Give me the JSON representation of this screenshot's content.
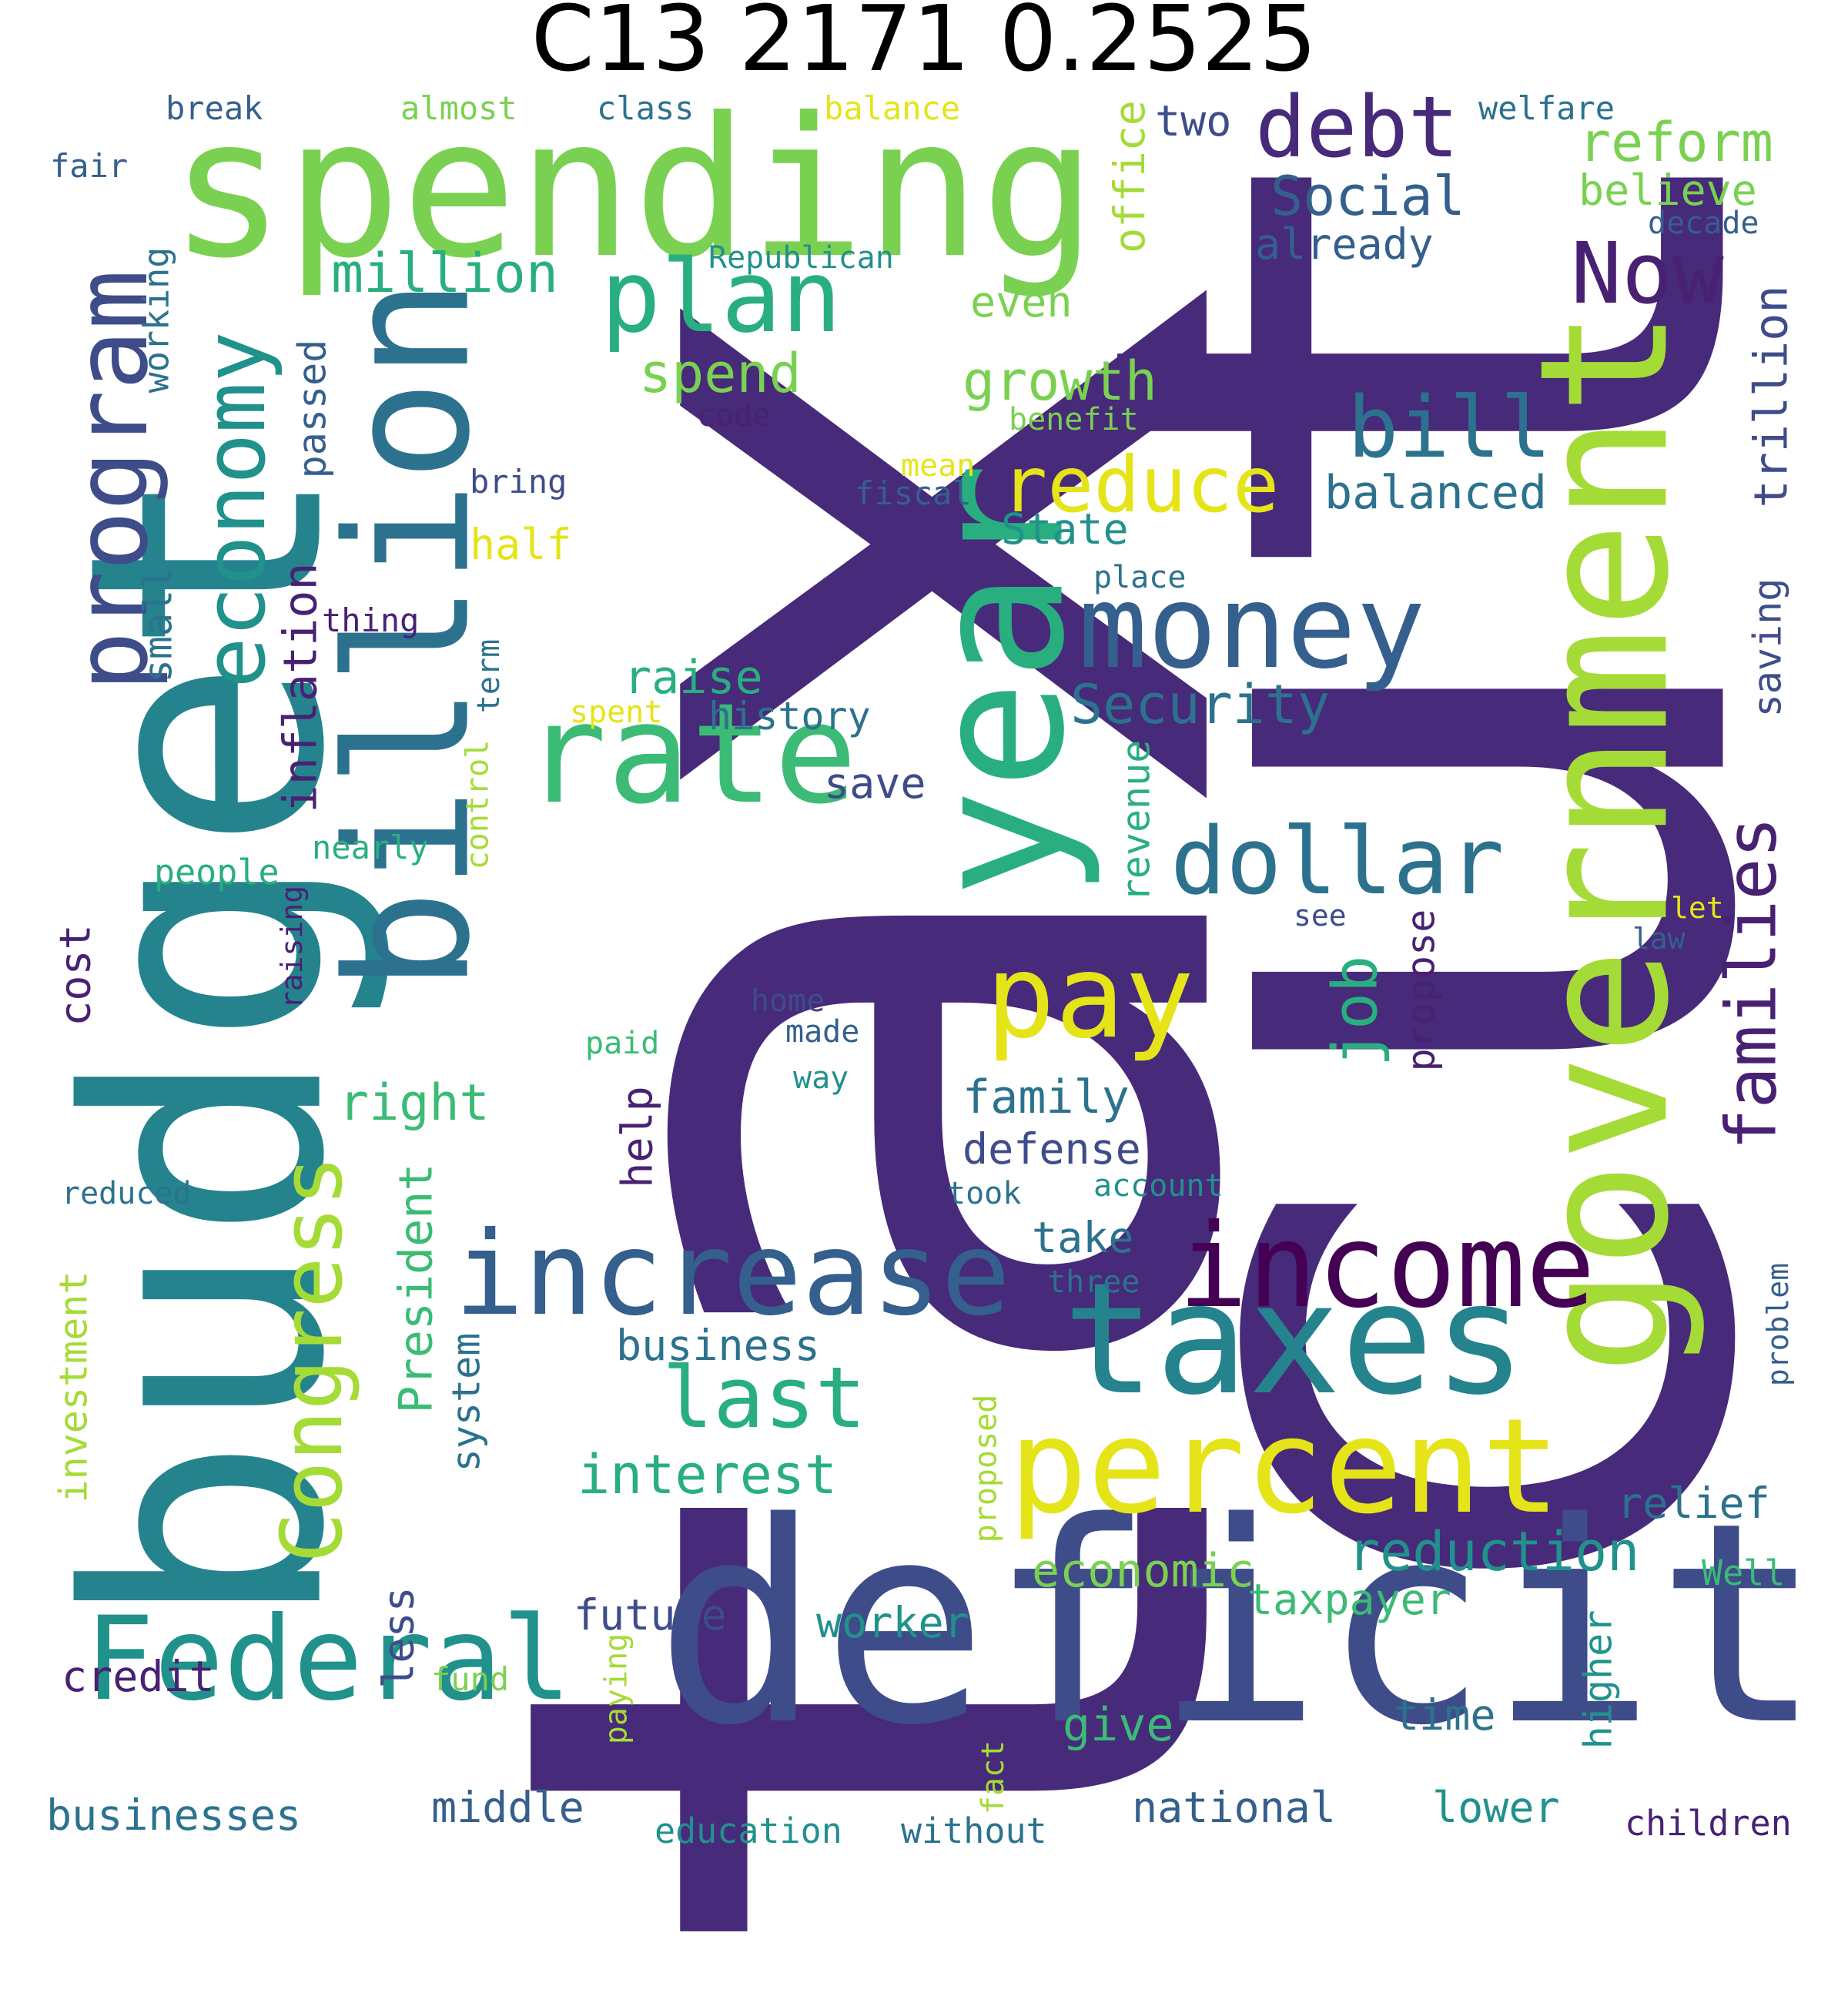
{
  "title": "C13 2171 0.2525",
  "palette": {
    "background": "#ffffff",
    "title": "#000000",
    "c_dark_purple": "#472a7a",
    "c_indigo": "#3e4c8a",
    "c_blue": "#355f8d",
    "c_teal_blue": "#2c728e",
    "c_teal": "#25838e",
    "c_teal_green": "#21918c",
    "c_green": "#29af7f",
    "c_mint": "#3bbb75",
    "c_lime": "#7ad151",
    "c_yellow_green": "#a5db36",
    "c_yellow": "#e5e419",
    "c_deep": "#440154",
    "c_plum": "#482173"
  },
  "words": [
    {
      "text": "tax",
      "color": "c_dark_purple"
    },
    {
      "text": "cut",
      "color": "c_dark_purple"
    },
    {
      "text": "spending",
      "color": "c_lime"
    },
    {
      "text": "budget",
      "color": "c_teal"
    },
    {
      "text": "deficit",
      "color": "c_indigo"
    },
    {
      "text": "year",
      "color": "c_green"
    },
    {
      "text": "government",
      "color": "c_yellow_green"
    },
    {
      "text": "billion",
      "color": "c_teal_blue"
    },
    {
      "text": "taxes",
      "color": "c_teal"
    },
    {
      "text": "percent",
      "color": "c_yellow"
    },
    {
      "text": "increase",
      "color": "c_blue"
    },
    {
      "text": "income",
      "color": "c_deep"
    },
    {
      "text": "rate",
      "color": "c_mint"
    },
    {
      "text": "money",
      "color": "c_blue"
    },
    {
      "text": "debt",
      "color": "c_dark_purple"
    },
    {
      "text": "plan",
      "color": "c_green"
    },
    {
      "text": "Federal",
      "color": "c_teal_green"
    },
    {
      "text": "program",
      "color": "c_indigo"
    },
    {
      "text": "Now",
      "color": "c_plum"
    },
    {
      "text": "dollar",
      "color": "c_teal_blue"
    },
    {
      "text": "pay",
      "color": "c_yellow"
    },
    {
      "text": "bill",
      "color": "c_teal_blue"
    },
    {
      "text": "Congress",
      "color": "c_yellow_green"
    },
    {
      "text": "economy",
      "color": "c_teal_green"
    },
    {
      "text": "reduce",
      "color": "c_yellow"
    },
    {
      "text": "last",
      "color": "c_green"
    },
    {
      "text": "families",
      "color": "c_plum"
    },
    {
      "text": "Social",
      "color": "c_blue"
    },
    {
      "text": "Security",
      "color": "c_teal_blue"
    },
    {
      "text": "reform",
      "color": "c_lime"
    },
    {
      "text": "million",
      "color": "c_green"
    },
    {
      "text": "growth",
      "color": "c_lime"
    },
    {
      "text": "interest",
      "color": "c_green"
    },
    {
      "text": "job",
      "color": "c_green"
    },
    {
      "text": "reduction",
      "color": "c_teal_green"
    },
    {
      "text": "economic",
      "color": "c_lime"
    },
    {
      "text": "trillion",
      "color": "c_indigo"
    },
    {
      "text": "balanced",
      "color": "c_teal_blue"
    },
    {
      "text": "believe",
      "color": "c_lime"
    },
    {
      "text": "already",
      "color": "c_blue"
    },
    {
      "text": "two",
      "color": "c_indigo"
    },
    {
      "text": "office",
      "color": "c_yellow_green"
    },
    {
      "text": "spend",
      "color": "c_lime"
    },
    {
      "text": "even",
      "color": "c_lime"
    },
    {
      "text": "State",
      "color": "c_teal_green"
    },
    {
      "text": "raise",
      "color": "c_green"
    },
    {
      "text": "history",
      "color": "c_teal_blue"
    },
    {
      "text": "half",
      "color": "c_yellow"
    },
    {
      "text": "inflation",
      "color": "c_plum"
    },
    {
      "text": "passed",
      "color": "c_blue"
    },
    {
      "text": "small",
      "color": "c_teal_blue"
    },
    {
      "text": "working",
      "color": "c_teal_blue"
    },
    {
      "text": "save",
      "color": "c_indigo"
    },
    {
      "text": "saving",
      "color": "c_indigo"
    },
    {
      "text": "revenue",
      "color": "c_green"
    },
    {
      "text": "propose",
      "color": "c_plum"
    },
    {
      "text": "family",
      "color": "c_teal_blue"
    },
    {
      "text": "defense",
      "color": "c_indigo"
    },
    {
      "text": "right",
      "color": "c_mint"
    },
    {
      "text": "help",
      "color": "c_plum"
    },
    {
      "text": "take",
      "color": "c_teal_blue"
    },
    {
      "text": "business",
      "color": "c_teal_blue"
    },
    {
      "text": "President",
      "color": "c_mint"
    },
    {
      "text": "investment",
      "color": "c_yellow_green"
    },
    {
      "text": "cost",
      "color": "c_plum"
    },
    {
      "text": "relief",
      "color": "c_teal_blue"
    },
    {
      "text": "taxpayer",
      "color": "c_mint"
    },
    {
      "text": "future",
      "color": "c_indigo"
    },
    {
      "text": "worker",
      "color": "c_teal_green"
    },
    {
      "text": "credit",
      "color": "c_plum"
    },
    {
      "text": "less",
      "color": "c_indigo"
    },
    {
      "text": "system",
      "color": "c_teal_blue"
    },
    {
      "text": "give",
      "color": "c_mint"
    },
    {
      "text": "time",
      "color": "c_teal_blue"
    },
    {
      "text": "higher",
      "color": "c_teal_green"
    },
    {
      "text": "Well",
      "color": "c_mint"
    },
    {
      "text": "businesses",
      "color": "c_teal_blue"
    },
    {
      "text": "middle",
      "color": "c_blue"
    },
    {
      "text": "national",
      "color": "c_blue"
    },
    {
      "text": "lower",
      "color": "c_teal_green"
    },
    {
      "text": "children",
      "color": "c_plum"
    },
    {
      "text": "education",
      "color": "c_teal_green"
    },
    {
      "text": "without",
      "color": "c_teal_blue"
    },
    {
      "text": "fund",
      "color": "c_lime"
    },
    {
      "text": "paying",
      "color": "c_yellow_green"
    },
    {
      "text": "fact",
      "color": "c_yellow_green"
    },
    {
      "text": "proposed",
      "color": "c_yellow_green"
    },
    {
      "text": "three",
      "color": "c_teal_blue"
    },
    {
      "text": "problem",
      "color": "c_blue"
    },
    {
      "text": "account",
      "color": "c_teal_green"
    },
    {
      "text": "took",
      "color": "c_teal_blue"
    },
    {
      "text": "reduced",
      "color": "c_teal_blue"
    },
    {
      "text": "way",
      "color": "c_teal_green"
    },
    {
      "text": "made",
      "color": "c_blue"
    },
    {
      "text": "home",
      "color": "c_indigo"
    },
    {
      "text": "paid",
      "color": "c_mint"
    },
    {
      "text": "see",
      "color": "c_indigo"
    },
    {
      "text": "let",
      "color": "c_yellow"
    },
    {
      "text": "law",
      "color": "c_blue"
    },
    {
      "text": "people",
      "color": "c_green"
    },
    {
      "text": "nearly",
      "color": "c_green"
    },
    {
      "text": "raising",
      "color": "c_plum"
    },
    {
      "text": "control",
      "color": "c_yellow_green"
    },
    {
      "text": "term",
      "color": "c_teal_blue"
    },
    {
      "text": "spent",
      "color": "c_yellow"
    },
    {
      "text": "thing",
      "color": "c_plum"
    },
    {
      "text": "place",
      "color": "c_teal_blue"
    },
    {
      "text": "bring",
      "color": "c_indigo"
    },
    {
      "text": "fiscal",
      "color": "c_blue"
    },
    {
      "text": "mean",
      "color": "c_yellow"
    },
    {
      "text": "benefit",
      "color": "c_lime"
    },
    {
      "text": "code",
      "color": "c_plum"
    },
    {
      "text": "Republican",
      "color": "c_teal_green"
    },
    {
      "text": "decade",
      "color": "c_blue"
    },
    {
      "text": "welfare",
      "color": "c_teal_blue"
    },
    {
      "text": "balance",
      "color": "c_yellow"
    },
    {
      "text": "class",
      "color": "c_teal_blue"
    },
    {
      "text": "almost",
      "color": "c_lime"
    },
    {
      "text": "break",
      "color": "c_blue"
    },
    {
      "text": "fair",
      "color": "c_blue"
    }
  ]
}
